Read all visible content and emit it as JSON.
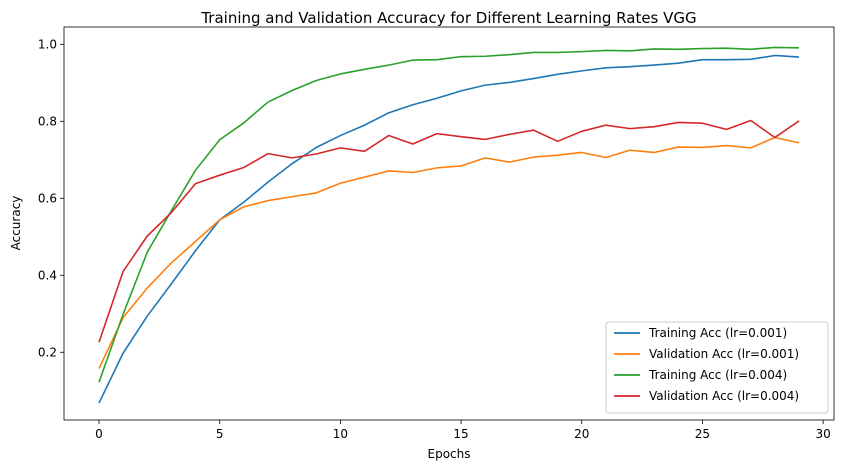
{
  "chart_data": {
    "type": "line",
    "title": "Training and Validation Accuracy for Different Learning Rates VGG",
    "xlabel": "Epochs",
    "ylabel": "Accuracy",
    "xlim": [
      -1.45,
      30.45
    ],
    "ylim": [
      0.024,
      1.045
    ],
    "xticks": [
      0,
      5,
      10,
      15,
      20,
      25,
      30
    ],
    "yticks": [
      0.2,
      0.4,
      0.6,
      0.8,
      1.0
    ],
    "xtick_labels": [
      "0",
      "5",
      "10",
      "15",
      "20",
      "25",
      "30"
    ],
    "ytick_labels": [
      "0.2",
      "0.4",
      "0.6",
      "0.8",
      "1.0"
    ],
    "grid": false,
    "legend_position": "bottom-right",
    "x": [
      0,
      1,
      2,
      3,
      4,
      5,
      6,
      7,
      8,
      9,
      10,
      11,
      12,
      13,
      14,
      15,
      16,
      17,
      18,
      19,
      20,
      21,
      22,
      23,
      24,
      25,
      26,
      27,
      28,
      29
    ],
    "series": [
      {
        "name": "Training Acc (lr=0.001)",
        "color": "#1f77b4",
        "values": [
          0.068,
          0.198,
          0.294,
          0.378,
          0.464,
          0.544,
          0.59,
          0.642,
          0.69,
          0.732,
          0.763,
          0.79,
          0.822,
          0.843,
          0.86,
          0.879,
          0.894,
          0.901,
          0.911,
          0.922,
          0.931,
          0.939,
          0.942,
          0.946,
          0.951,
          0.96,
          0.96,
          0.961,
          0.971,
          0.967
        ]
      },
      {
        "name": "Validation Acc (lr=0.001)",
        "color": "#ff7f0e",
        "values": [
          0.158,
          0.29,
          0.367,
          0.432,
          0.488,
          0.544,
          0.578,
          0.594,
          0.604,
          0.614,
          0.639,
          0.655,
          0.671,
          0.667,
          0.679,
          0.684,
          0.705,
          0.694,
          0.707,
          0.712,
          0.719,
          0.706,
          0.725,
          0.719,
          0.733,
          0.732,
          0.737,
          0.731,
          0.758,
          0.744
        ]
      },
      {
        "name": "Training Acc (lr=0.004)",
        "color": "#2ca02c",
        "values": [
          0.122,
          0.299,
          0.46,
          0.568,
          0.673,
          0.752,
          0.796,
          0.85,
          0.88,
          0.906,
          0.923,
          0.935,
          0.946,
          0.959,
          0.96,
          0.968,
          0.969,
          0.973,
          0.979,
          0.979,
          0.981,
          0.984,
          0.983,
          0.988,
          0.987,
          0.989,
          0.99,
          0.987,
          0.992,
          0.991
        ]
      },
      {
        "name": "Validation Acc (lr=0.004)",
        "color": "#d62728",
        "values": [
          0.226,
          0.41,
          0.502,
          0.563,
          0.638,
          0.66,
          0.68,
          0.716,
          0.705,
          0.715,
          0.731,
          0.722,
          0.763,
          0.741,
          0.768,
          0.76,
          0.753,
          0.766,
          0.777,
          0.748,
          0.774,
          0.79,
          0.781,
          0.786,
          0.797,
          0.795,
          0.779,
          0.802,
          0.758,
          0.801
        ]
      }
    ]
  }
}
